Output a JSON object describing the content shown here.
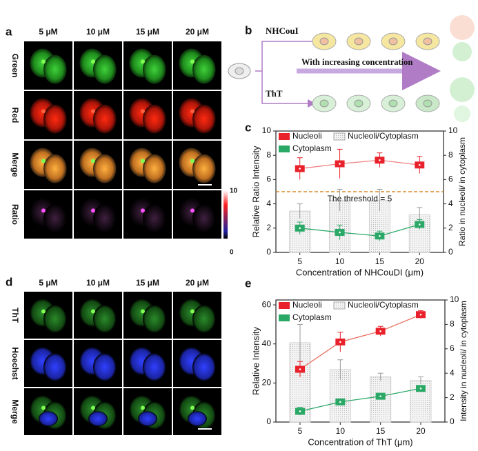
{
  "panel_a": {
    "label": "a",
    "columns": [
      "5 μM",
      "10 μM",
      "15 μM",
      "20 μM"
    ],
    "rows": [
      "Green",
      "Red",
      "Merge",
      "Ratio"
    ],
    "colorbar": {
      "max": 10,
      "min": 0
    }
  },
  "panel_b": {
    "label": "b",
    "top_probe": "NHCouI",
    "arrow_text": "With increasing concentration",
    "bottom_probe": "ThT"
  },
  "panel_d": {
    "label": "d",
    "columns": [
      "5 μM",
      "10 μM",
      "15 μM",
      "20 μM"
    ],
    "rows": [
      "ThT",
      "Hoechst",
      "Merge"
    ]
  },
  "chart_data": [
    {
      "type": "combo",
      "label": "c",
      "x": [
        5,
        10,
        15,
        20
      ],
      "xlim": [
        2,
        23
      ],
      "xticks": [
        5,
        10,
        15,
        20
      ],
      "xlabel": "Concentration of NHCouDI  (μm)",
      "ylabel": "Relative Ratio Intensity",
      "y2label": "Ratio in nucleoli/ in cytoplasm",
      "ylim": [
        0,
        10
      ],
      "yticks": [
        0,
        2,
        4,
        6,
        8,
        10
      ],
      "y2lim": [
        0,
        10
      ],
      "y2ticks": [
        0,
        2,
        4,
        6,
        8,
        10
      ],
      "threshold": {
        "value": 5,
        "label": "The threshold = 5",
        "color": "#d98a2b"
      },
      "series": [
        {
          "name": "Nucleoli",
          "color": "#e8212a",
          "line_color": "#f08080",
          "kind": "line",
          "values": [
            6.9,
            7.3,
            7.6,
            7.2
          ],
          "errors": [
            0.9,
            1.2,
            0.6,
            0.7
          ]
        },
        {
          "name": "Nucleoli/Cytoplasm",
          "color": "#cfcfcf",
          "kind": "bar",
          "axis": "y2",
          "values": [
            3.4,
            4.3,
            4.3,
            3.1
          ],
          "errors": [
            0.6,
            0.9,
            0.9,
            0.6
          ]
        },
        {
          "name": "Cytoplasm",
          "color": "#2aa866",
          "line_color": "#2aa866",
          "kind": "line",
          "values": [
            2.0,
            1.65,
            1.35,
            2.3
          ],
          "errors": [
            0.5,
            0.6,
            0.4,
            0.4
          ]
        }
      ]
    },
    {
      "type": "combo",
      "label": "e",
      "x": [
        5,
        10,
        15,
        20
      ],
      "xlim": [
        2,
        23
      ],
      "xticks": [
        5,
        10,
        15,
        20
      ],
      "xlabel": "Concentration of ThT  (μm)",
      "ylabel": "Relative  Intensity",
      "y2label": "Intensity in nucleoli/ in cytoplasm",
      "ylim": [
        0,
        62.5
      ],
      "yticks": [
        0,
        20,
        40,
        60
      ],
      "y2lim": [
        0,
        10
      ],
      "y2ticks": [
        0,
        2,
        4,
        6,
        8,
        10
      ],
      "series": [
        {
          "name": "Nucleoli",
          "color": "#e8212a",
          "line_color": "#e87060",
          "kind": "line",
          "values": [
            27,
            41,
            46.5,
            55
          ],
          "errors": [
            4,
            5,
            2.5,
            2
          ]
        },
        {
          "name": "Nucleoli/Cytoplasm",
          "color": "#cfcfcf",
          "kind": "bar",
          "axis": "y2",
          "values": [
            6.5,
            4.3,
            3.7,
            3.4
          ],
          "errors": [
            1.5,
            0.8,
            0.3,
            0.3
          ]
        },
        {
          "name": "Cytoplasm",
          "color": "#2aa866",
          "line_color": "#2aa866",
          "kind": "line",
          "values": [
            5.5,
            10.3,
            13.2,
            17.2
          ],
          "errors": [
            2,
            1,
            1,
            1
          ]
        }
      ]
    }
  ]
}
